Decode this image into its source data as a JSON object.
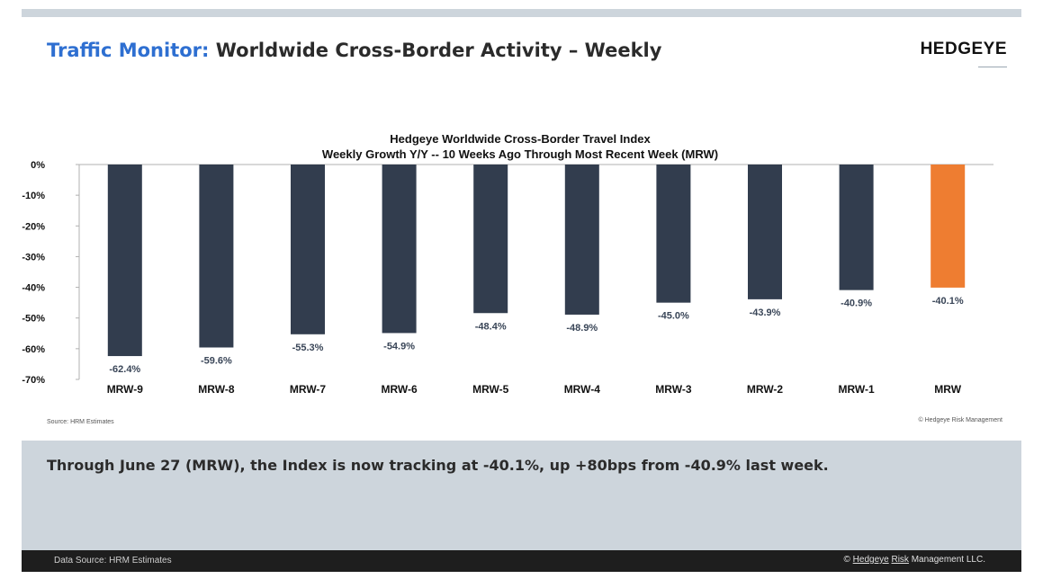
{
  "header": {
    "title_accent": "Traffic Monitor:",
    "title_rest": " Worldwide Cross-Border Activity – Weekly",
    "logo": "HEDGEYE"
  },
  "chart_data": {
    "type": "bar",
    "title": "Hedgeye Worldwide Cross-Border Travel Index",
    "subtitle": "Weekly Growth Y/Y -- 10 Weeks Ago Through Most Recent Week (MRW)",
    "categories": [
      "MRW-9",
      "MRW-8",
      "MRW-7",
      "MRW-6",
      "MRW-5",
      "MRW-4",
      "MRW-3",
      "MRW-2",
      "MRW-1",
      "MRW"
    ],
    "values": [
      -62.4,
      -59.6,
      -55.3,
      -54.9,
      -48.4,
      -48.9,
      -45.0,
      -43.9,
      -40.9,
      -40.1
    ],
    "data_labels": [
      "-62.4%",
      "-59.6%",
      "-55.3%",
      "-54.9%",
      "-48.4%",
      "-48.9%",
      "-45.0%",
      "-43.9%",
      "-40.9%",
      "-40.1%"
    ],
    "y_ticks": [
      0,
      -10,
      -20,
      -30,
      -40,
      -50,
      -60,
      -70
    ],
    "y_tick_labels": [
      "0%",
      "-10%",
      "-20%",
      "-30%",
      "-40%",
      "-50%",
      "-60%",
      "-70%"
    ],
    "ylim": [
      -70,
      0
    ],
    "grid": false,
    "colors": {
      "default": "#323d4e",
      "highlight": "#ee7d31"
    },
    "highlight_index": 9
  },
  "chart_footer": {
    "source": "Source: HRM Estimates",
    "copyright": "© Hedgeye Risk Management"
  },
  "summary": {
    "text": "Through June 27 (MRW),  the Index is now tracking at -40.1%, up +80bps from -40.9% last week."
  },
  "footer": {
    "source": "Data Source: HRM Estimates",
    "copyright_prefix": "© ",
    "copyright_hedgeye": "Hedgeye",
    "copyright_space": " ",
    "copyright_risk": "Risk",
    "copyright_suffix": " Management LLC."
  }
}
